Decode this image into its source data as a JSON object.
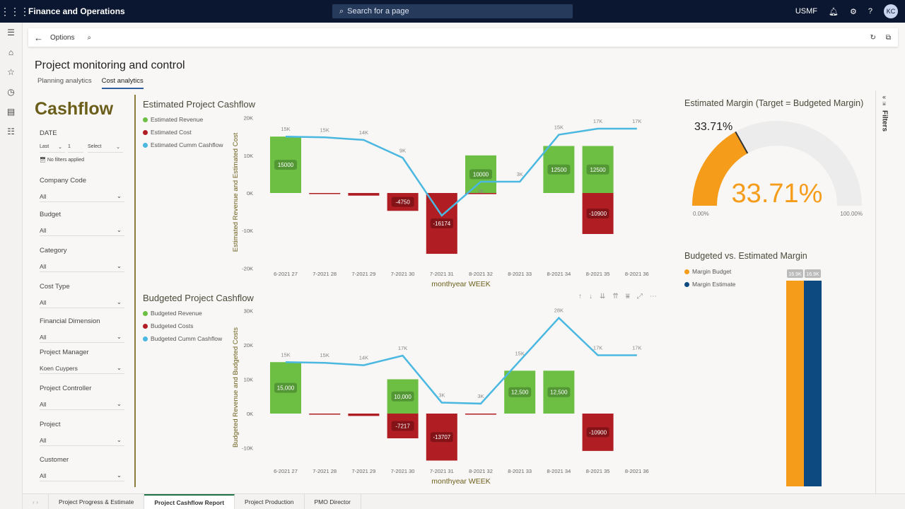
{
  "topbar": {
    "app_title": "Finance and Operations",
    "search_placeholder": "Search for a page",
    "company": "USMF",
    "avatar": "KC"
  },
  "actionbar": {
    "options": "Options"
  },
  "page": {
    "title": "Project monitoring and control",
    "tabs": [
      "Planning analytics",
      "Cost analytics"
    ],
    "active_tab": "Cost analytics"
  },
  "slicers": {
    "heading": "Cashflow",
    "date_label": "DATE",
    "date_mode": "Last",
    "date_count": "1",
    "date_unit": "Select",
    "no_filters": "No filters applied",
    "filters": [
      {
        "label": "Company Code",
        "value": "All"
      },
      {
        "label": "Budget",
        "value": "All"
      },
      {
        "label": "Category",
        "value": "All"
      },
      {
        "label": "Cost Type",
        "value": "All"
      },
      {
        "label": "Financial Dimension",
        "value": "All"
      },
      {
        "label": "Project Manager",
        "value": "Koen Cuypers"
      },
      {
        "label": "Project Controller",
        "value": "All"
      },
      {
        "label": "Project",
        "value": "All"
      },
      {
        "label": "Customer",
        "value": "All"
      }
    ]
  },
  "colors": {
    "revenue": "#6cbf43",
    "cost": "#b01e24",
    "cumm": "#4ab8e0",
    "gauge": "#f59c1a",
    "gauge_track": "#ececec",
    "budget": "#f59c1a",
    "estimate": "#0d4a80",
    "title": "#6b5e1a"
  },
  "chart_data": [
    {
      "type": "bar",
      "title": "Estimated Project Cashflow",
      "xlabel": "monthyear WEEK",
      "ylabel": "Estimated Revenue and Estimated Cost",
      "ylim": [
        -20000,
        20000
      ],
      "yticks": [
        "-20K",
        "-10K",
        "0K",
        "10K",
        "20K"
      ],
      "ytick_values": [
        -20000,
        -10000,
        0,
        10000,
        20000
      ],
      "categories": [
        "6-2021 27",
        "7-2021 28",
        "7-2021 29",
        "7-2021 30",
        "7-2021 31",
        "8-2021 32",
        "8-2021 33",
        "8-2021 34",
        "8-2021 35",
        "8-2021 36"
      ],
      "series": [
        {
          "name": "Estimated Revenue",
          "type": "bar",
          "values": [
            15000,
            0,
            0,
            0,
            0,
            10000,
            0,
            12500,
            12500,
            0
          ],
          "labels": [
            "15000",
            "",
            "",
            "",
            "",
            "10000",
            "",
            "12500",
            "12500",
            ""
          ]
        },
        {
          "name": "Estimated Cost",
          "type": "bar",
          "values": [
            0,
            -200,
            -700,
            -4750,
            -16174,
            -300,
            0,
            0,
            -10900,
            0
          ],
          "labels": [
            "",
            "",
            "",
            "-4750",
            "-16174",
            "",
            "",
            "",
            "-10900",
            ""
          ]
        },
        {
          "name": "Estimated Cumm Cashflow",
          "type": "line",
          "values": [
            15000,
            14800,
            14100,
            9350,
            -6000,
            3000,
            3000,
            15500,
            17100,
            17100
          ],
          "labels": [
            "15K",
            "15K",
            "14K",
            "9K",
            "",
            "3K",
            "3K",
            "15K",
            "17K",
            "17K"
          ]
        }
      ]
    },
    {
      "type": "bar",
      "title": "Budgeted Project Cashflow",
      "xlabel": "monthyear WEEK",
      "ylabel": "Budgeted Revenue and Budgeted Costs",
      "ylim": [
        -15000,
        30000
      ],
      "yticks": [
        "-10K",
        "0K",
        "10K",
        "20K",
        "30K"
      ],
      "ytick_values": [
        -10000,
        0,
        10000,
        20000,
        30000
      ],
      "categories": [
        "6-2021 27",
        "7-2021 28",
        "7-2021 29",
        "7-2021 30",
        "7-2021 31",
        "8-2021 32",
        "8-2021 33",
        "8-2021 34",
        "8-2021 35",
        "8-2021 36"
      ],
      "series": [
        {
          "name": "Budgeted Revenue",
          "type": "bar",
          "values": [
            15000,
            0,
            0,
            10000,
            0,
            0,
            12500,
            12500,
            0,
            0
          ],
          "labels": [
            "15,000",
            "",
            "",
            "10,000",
            "",
            "",
            "12,500",
            "12,500",
            "",
            ""
          ]
        },
        {
          "name": "Budgeted Costs",
          "type": "bar",
          "values": [
            0,
            -200,
            -700,
            -7217,
            -13707,
            -300,
            0,
            0,
            -10900,
            0
          ],
          "labels": [
            "",
            "",
            "",
            "-7217",
            "-13707",
            "",
            "",
            "",
            "-10900",
            ""
          ]
        },
        {
          "name": "Budgeted Cumm Cashflow",
          "type": "line",
          "values": [
            15000,
            14800,
            14100,
            16900,
            3200,
            2900,
            15400,
            27900,
            17000,
            17000
          ],
          "labels": [
            "15K",
            "15K",
            "14K",
            "17K",
            "3K",
            "3K",
            "15K",
            "28K",
            "17K",
            "17K"
          ]
        }
      ]
    },
    {
      "type": "gauge",
      "title": "Estimated Margin (Target = Budgeted Margin)",
      "value": 33.71,
      "target": 33.71,
      "min_label": "0.00%",
      "max_label": "100.00%",
      "value_label": "33.71%",
      "target_label": "33.71%"
    },
    {
      "type": "bar",
      "title": "Budgeted vs. Estimated Margin",
      "series": [
        {
          "name": "Margin Budget",
          "values": [
            16900
          ],
          "labels": [
            "16.9K"
          ]
        },
        {
          "name": "Margin Estimate",
          "values": [
            16900
          ],
          "labels": [
            "16.9K"
          ]
        }
      ]
    }
  ],
  "filters_pane": {
    "label": "Filters"
  },
  "bottom_tabs": [
    "Project Progress & Estimate",
    "Project Cashflow Report",
    "Project Production",
    "PMO Director"
  ],
  "bottom_active": "Project Cashflow Report"
}
